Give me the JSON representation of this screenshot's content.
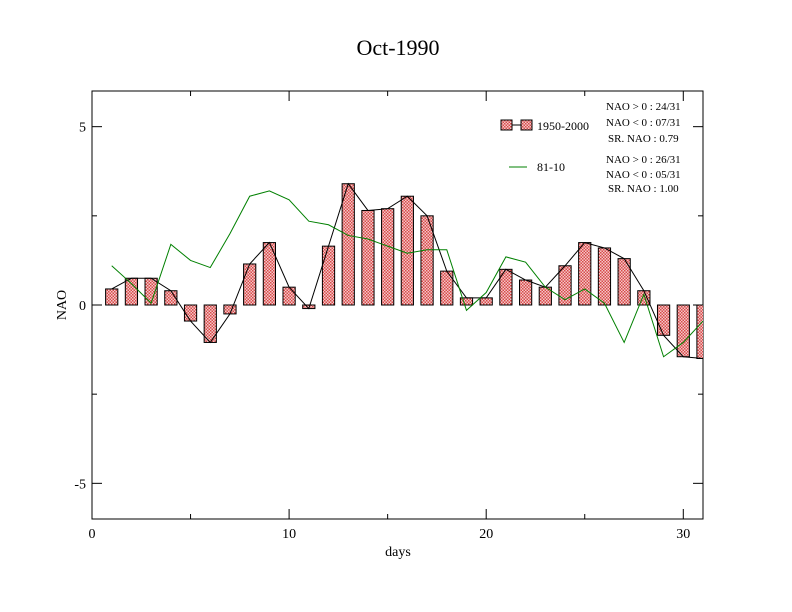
{
  "chart_data": {
    "type": "bar",
    "title": "Oct-1990",
    "xlabel": "days",
    "ylabel": "NAO",
    "xlim": [
      0,
      31
    ],
    "ylim": [
      -6,
      6
    ],
    "xticks": [
      0,
      10,
      20,
      30
    ],
    "yticks": [
      -5,
      0,
      5
    ],
    "grid": false,
    "legend_position": "top-right",
    "colors": {
      "bar_fill": "#e07070",
      "bar_stroke": "#000000",
      "line_black": "#000000",
      "line_green": "#008000"
    },
    "x": [
      1,
      2,
      3,
      4,
      5,
      6,
      7,
      8,
      9,
      10,
      11,
      12,
      13,
      14,
      15,
      16,
      17,
      18,
      19,
      20,
      21,
      22,
      23,
      24,
      25,
      26,
      27,
      28,
      29,
      30,
      31
    ],
    "series": [
      {
        "name": "1950-2000",
        "kind": "bar+line",
        "values": [
          0.45,
          0.75,
          0.75,
          0.4,
          -0.45,
          -1.05,
          -0.25,
          1.15,
          1.75,
          0.5,
          -0.1,
          1.65,
          3.4,
          2.65,
          2.7,
          3.05,
          2.5,
          0.95,
          0.2,
          0.2,
          1.0,
          0.7,
          0.5,
          1.1,
          1.75,
          1.6,
          1.3,
          0.4,
          -0.85,
          -1.45,
          -1.5
        ]
      },
      {
        "name": "81-10",
        "kind": "line",
        "values": [
          1.1,
          0.6,
          0.05,
          1.7,
          1.25,
          1.05,
          2.0,
          3.05,
          3.2,
          2.95,
          2.35,
          2.25,
          1.95,
          1.85,
          1.65,
          1.45,
          1.55,
          1.55,
          -0.15,
          0.35,
          1.35,
          1.2,
          0.5,
          0.15,
          0.45,
          0.05,
          -1.05,
          0.3,
          -1.45,
          -1.05,
          -0.45
        ]
      }
    ],
    "annotations": [
      [
        "NAO > 0 : 24/31",
        "NAO < 0 : 07/31",
        "SR. NAO :  0.79"
      ],
      [
        "NAO > 0 : 26/31",
        "NAO < 0 : 05/31",
        "SR. NAO :  1.00"
      ]
    ]
  }
}
